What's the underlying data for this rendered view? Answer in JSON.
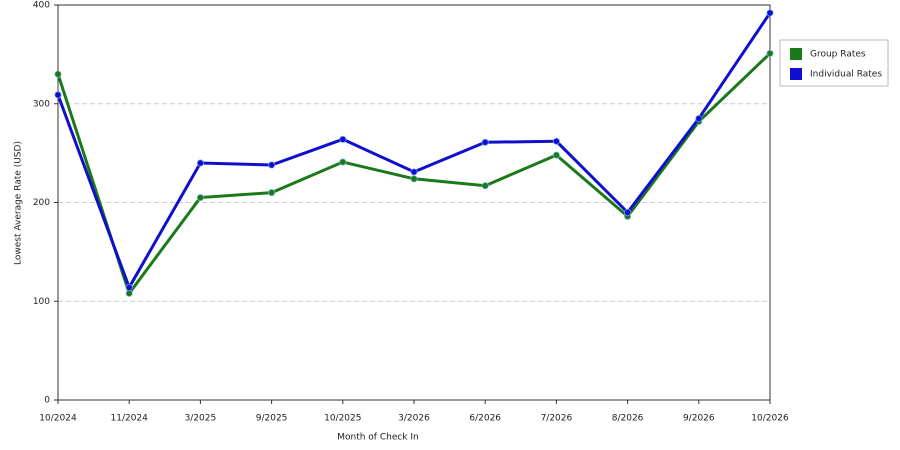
{
  "chart_data": {
    "type": "line",
    "categories": [
      "10/2024",
      "11/2024",
      "3/2025",
      "9/2025",
      "10/2025",
      "3/2026",
      "6/2026",
      "7/2026",
      "8/2026",
      "9/2026",
      "10/2026"
    ],
    "series": [
      {
        "name": "Group Rates",
        "color": "#1a7a1a",
        "values": [
          330,
          108,
          205,
          210,
          241,
          224,
          217,
          248,
          186,
          282,
          351
        ]
      },
      {
        "name": "Individual Rates",
        "color": "#1010cc",
        "values": [
          309,
          114,
          240,
          238,
          264,
          231,
          261,
          262,
          190,
          285,
          392
        ]
      }
    ],
    "ylim": [
      0,
      400
    ],
    "yticks": [
      0,
      100,
      200,
      300,
      400
    ],
    "y_label": "Lowest Average Rate (USD)",
    "x_label": "Month of Check In",
    "grid": true
  }
}
